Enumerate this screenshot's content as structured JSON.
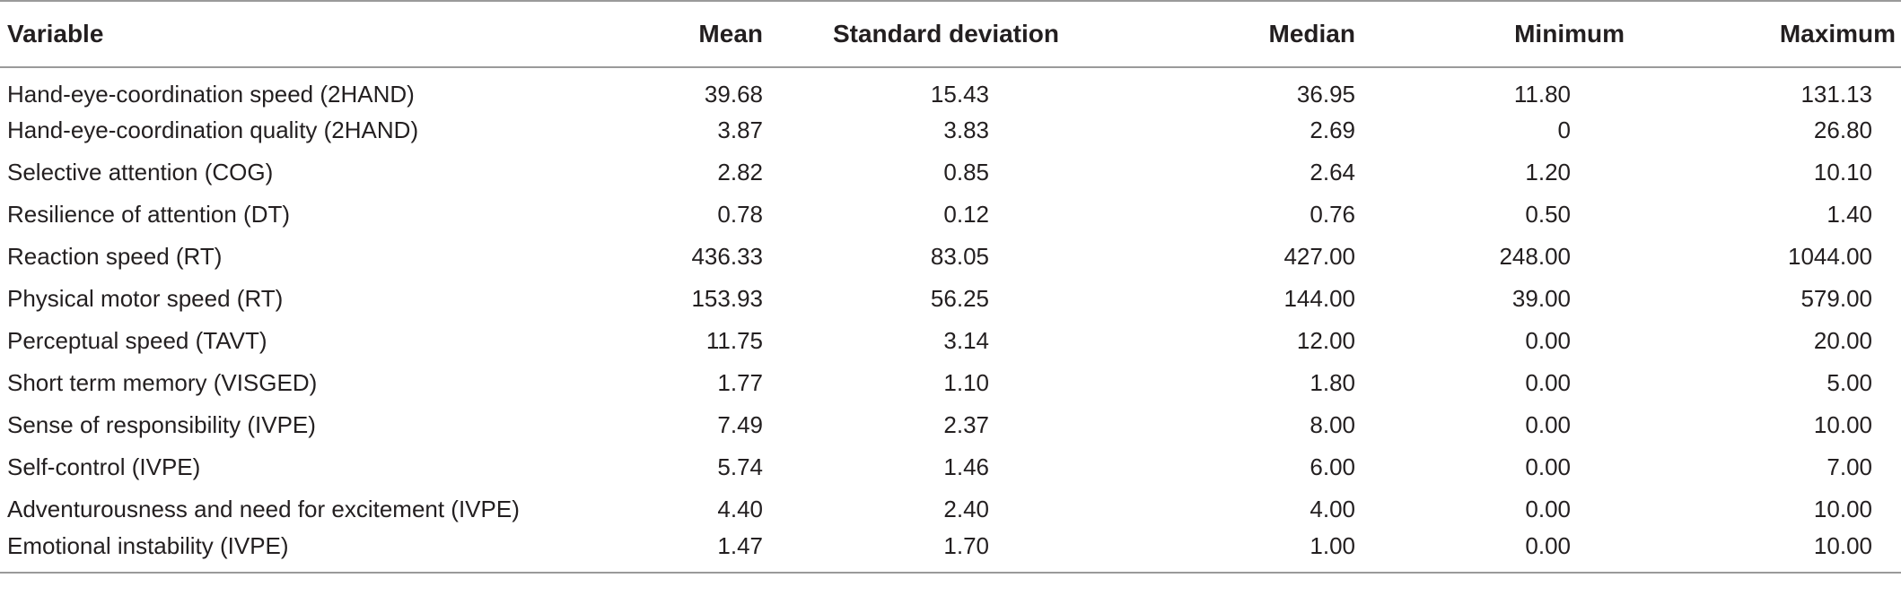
{
  "table": {
    "headers": {
      "variable": "Variable",
      "mean": "Mean",
      "sd": "Standard deviation",
      "median": "Median",
      "minimum": "Minimum",
      "maximum": "Maximum"
    },
    "rows": [
      {
        "variable": "Hand-eye-coordination speed (2HAND)",
        "mean": "39.68",
        "sd": "15.43",
        "median": "36.95",
        "minimum": "11.80",
        "maximum": "131.13"
      },
      {
        "variable": "Hand-eye-coordination quality (2HAND)",
        "mean": "3.87",
        "sd": "3.83",
        "median": "2.69",
        "minimum": "0",
        "maximum": "26.80"
      },
      {
        "variable": "Selective attention (COG)",
        "mean": "2.82",
        "sd": "0.85",
        "median": "2.64",
        "minimum": "1.20",
        "maximum": "10.10"
      },
      {
        "variable": "Resilience of attention (DT)",
        "mean": "0.78",
        "sd": "0.12",
        "median": "0.76",
        "minimum": "0.50",
        "maximum": "1.40"
      },
      {
        "variable": "Reaction speed (RT)",
        "mean": "436.33",
        "sd": "83.05",
        "median": "427.00",
        "minimum": "248.00",
        "maximum": "1044.00"
      },
      {
        "variable": "Physical motor speed (RT)",
        "mean": "153.93",
        "sd": "56.25",
        "median": "144.00",
        "minimum": "39.00",
        "maximum": "579.00"
      },
      {
        "variable": "Perceptual speed (TAVT)",
        "mean": "11.75",
        "sd": "3.14",
        "median": "12.00",
        "minimum": "0.00",
        "maximum": "20.00"
      },
      {
        "variable": "Short term memory (VISGED)",
        "mean": "1.77",
        "sd": "1.10",
        "median": "1.80",
        "minimum": "0.00",
        "maximum": "5.00"
      },
      {
        "variable": "Sense of responsibility (IVPE)",
        "mean": "7.49",
        "sd": "2.37",
        "median": "8.00",
        "minimum": "0.00",
        "maximum": "10.00"
      },
      {
        "variable": "Self-control (IVPE)",
        "mean": "5.74",
        "sd": "1.46",
        "median": "6.00",
        "minimum": "0.00",
        "maximum": "7.00"
      },
      {
        "variable": "Adventurousness and need for excitement (IVPE)",
        "mean": "4.40",
        "sd": "2.40",
        "median": "4.00",
        "minimum": "0.00",
        "maximum": "10.00"
      },
      {
        "variable": "Emotional instability (IVPE)",
        "mean": "1.47",
        "sd": "1.70",
        "median": "1.00",
        "minimum": "0.00",
        "maximum": "10.00"
      }
    ]
  }
}
